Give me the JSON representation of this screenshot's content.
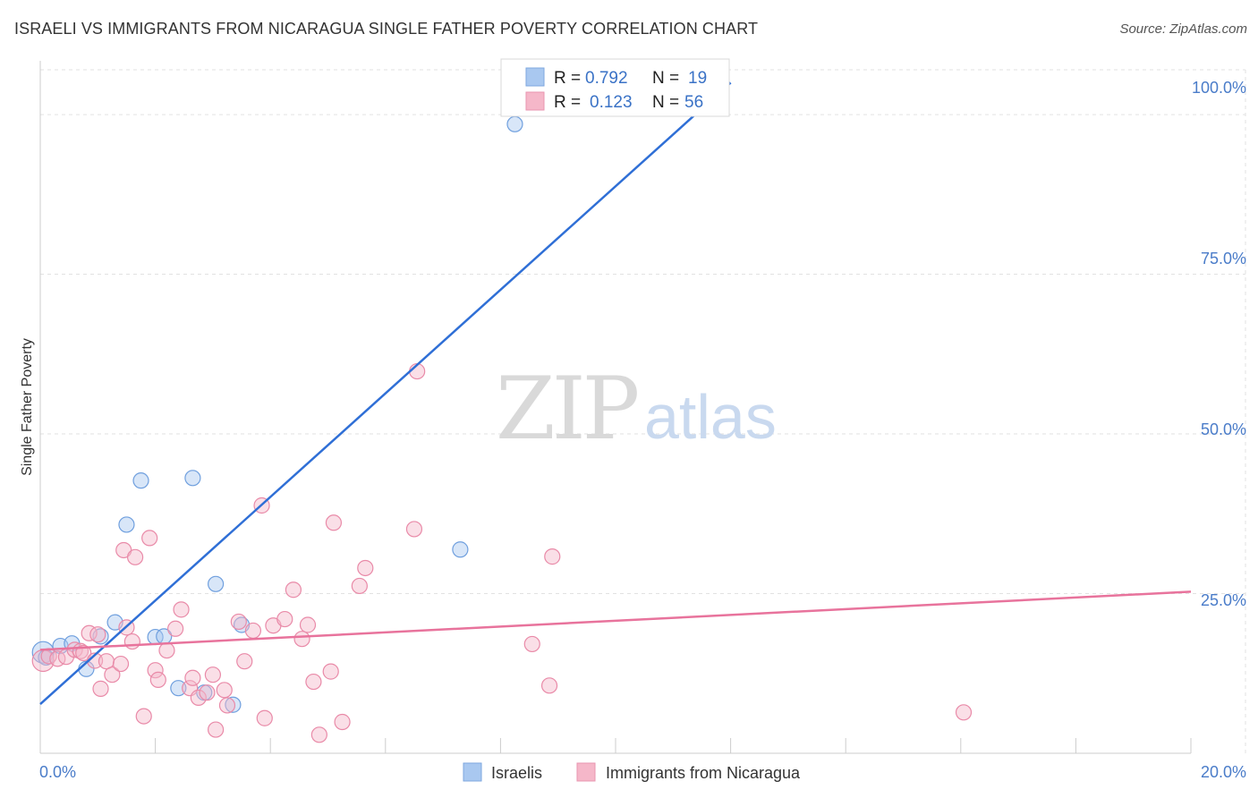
{
  "header": {
    "title": "ISRAELI VS IMMIGRANTS FROM NICARAGUA SINGLE FATHER POVERTY CORRELATION CHART",
    "source": "Source: ZipAtlas.com"
  },
  "watermark": {
    "zip": "ZIP",
    "atlas": "atlas"
  },
  "legend_top": {
    "rows": [
      {
        "r_label": "R =",
        "r_value": "0.792",
        "n_label": "N =",
        "n_value": "19",
        "color": "#a9c8f0"
      },
      {
        "r_label": "R =",
        "r_value": "0.123",
        "n_label": "N =",
        "n_value": "56",
        "color": "#f5b7c9"
      }
    ]
  },
  "legend_bottom": {
    "items": [
      {
        "label": "Israelis",
        "color": "#a9c8f0"
      },
      {
        "label": "Immigrants from Nicaragua",
        "color": "#f5b7c9"
      }
    ]
  },
  "chart_data": {
    "type": "scatter",
    "title": "ISRAELI VS IMMIGRANTS FROM NICARAGUA SINGLE FATHER POVERTY CORRELATION CHART",
    "xlabel": "",
    "ylabel": "Single Father Poverty",
    "xlim": [
      0,
      20
    ],
    "ylim": [
      0,
      105
    ],
    "x_tick_labels": [
      "0.0%",
      "20.0%"
    ],
    "y_ticks": [
      25,
      50,
      75,
      100
    ],
    "y_tick_labels": [
      "25.0%",
      "50.0%",
      "75.0%",
      "100.0%"
    ],
    "grid": true,
    "series": [
      {
        "name": "Israelis",
        "color": "#a9c8f0",
        "stroke": "#6f9fde",
        "line_color": "#2f6fd6",
        "r": 0.792,
        "n": 19,
        "trend": {
          "x": [
            0,
            12
          ],
          "y": [
            7.7,
            105
          ]
        },
        "points": [
          [
            0.05,
            15.8
          ],
          [
            0.1,
            15.0
          ],
          [
            0.35,
            16.8
          ],
          [
            0.55,
            17.2
          ],
          [
            0.8,
            13.2
          ],
          [
            1.05,
            18.3
          ],
          [
            1.3,
            20.5
          ],
          [
            1.5,
            35.8
          ],
          [
            1.75,
            42.7
          ],
          [
            2.0,
            18.2
          ],
          [
            2.15,
            18.3
          ],
          [
            2.4,
            10.2
          ],
          [
            2.65,
            43.1
          ],
          [
            2.85,
            9.5
          ],
          [
            3.05,
            26.5
          ],
          [
            3.35,
            7.6
          ],
          [
            3.5,
            20.1
          ],
          [
            7.3,
            31.9
          ],
          [
            8.25,
            98.5
          ]
        ]
      },
      {
        "name": "Immigrants from Nicaragua",
        "color": "#f5b7c9",
        "stroke": "#e98aa8",
        "line_color": "#e8739c",
        "r": 0.123,
        "n": 56,
        "trend": {
          "x": [
            0,
            20
          ],
          "y": [
            16.2,
            25.3
          ]
        },
        "points": [
          [
            0.05,
            14.5
          ],
          [
            0.15,
            15.2
          ],
          [
            0.3,
            14.8
          ],
          [
            0.45,
            15.1
          ],
          [
            0.6,
            16.2
          ],
          [
            0.7,
            16.0
          ],
          [
            0.75,
            15.7
          ],
          [
            0.85,
            18.8
          ],
          [
            0.95,
            14.5
          ],
          [
            1.0,
            18.6
          ],
          [
            1.05,
            10.1
          ],
          [
            1.15,
            14.4
          ],
          [
            1.25,
            12.3
          ],
          [
            1.4,
            14.0
          ],
          [
            1.45,
            31.8
          ],
          [
            1.5,
            19.7
          ],
          [
            1.6,
            17.5
          ],
          [
            1.65,
            30.7
          ],
          [
            1.8,
            5.8
          ],
          [
            1.9,
            33.7
          ],
          [
            2.0,
            13.0
          ],
          [
            2.05,
            11.5
          ],
          [
            2.2,
            16.1
          ],
          [
            2.35,
            19.5
          ],
          [
            2.45,
            22.5
          ],
          [
            2.6,
            10.2
          ],
          [
            2.65,
            11.8
          ],
          [
            2.75,
            8.7
          ],
          [
            2.9,
            9.5
          ],
          [
            3.0,
            12.3
          ],
          [
            3.05,
            3.7
          ],
          [
            3.2,
            9.9
          ],
          [
            3.25,
            7.5
          ],
          [
            3.45,
            20.6
          ],
          [
            3.55,
            14.4
          ],
          [
            3.7,
            19.2
          ],
          [
            3.9,
            5.5
          ],
          [
            3.85,
            38.8
          ],
          [
            4.05,
            20.0
          ],
          [
            4.25,
            21.0
          ],
          [
            4.4,
            25.6
          ],
          [
            4.55,
            17.9
          ],
          [
            4.65,
            20.1
          ],
          [
            4.75,
            11.2
          ],
          [
            4.85,
            2.9
          ],
          [
            5.05,
            12.8
          ],
          [
            5.1,
            36.1
          ],
          [
            5.25,
            4.9
          ],
          [
            5.55,
            26.2
          ],
          [
            5.65,
            29.0
          ],
          [
            6.5,
            35.1
          ],
          [
            6.55,
            59.8
          ],
          [
            8.55,
            17.1
          ],
          [
            8.85,
            10.6
          ],
          [
            8.9,
            30.8
          ],
          [
            16.05,
            6.4
          ]
        ]
      }
    ]
  }
}
